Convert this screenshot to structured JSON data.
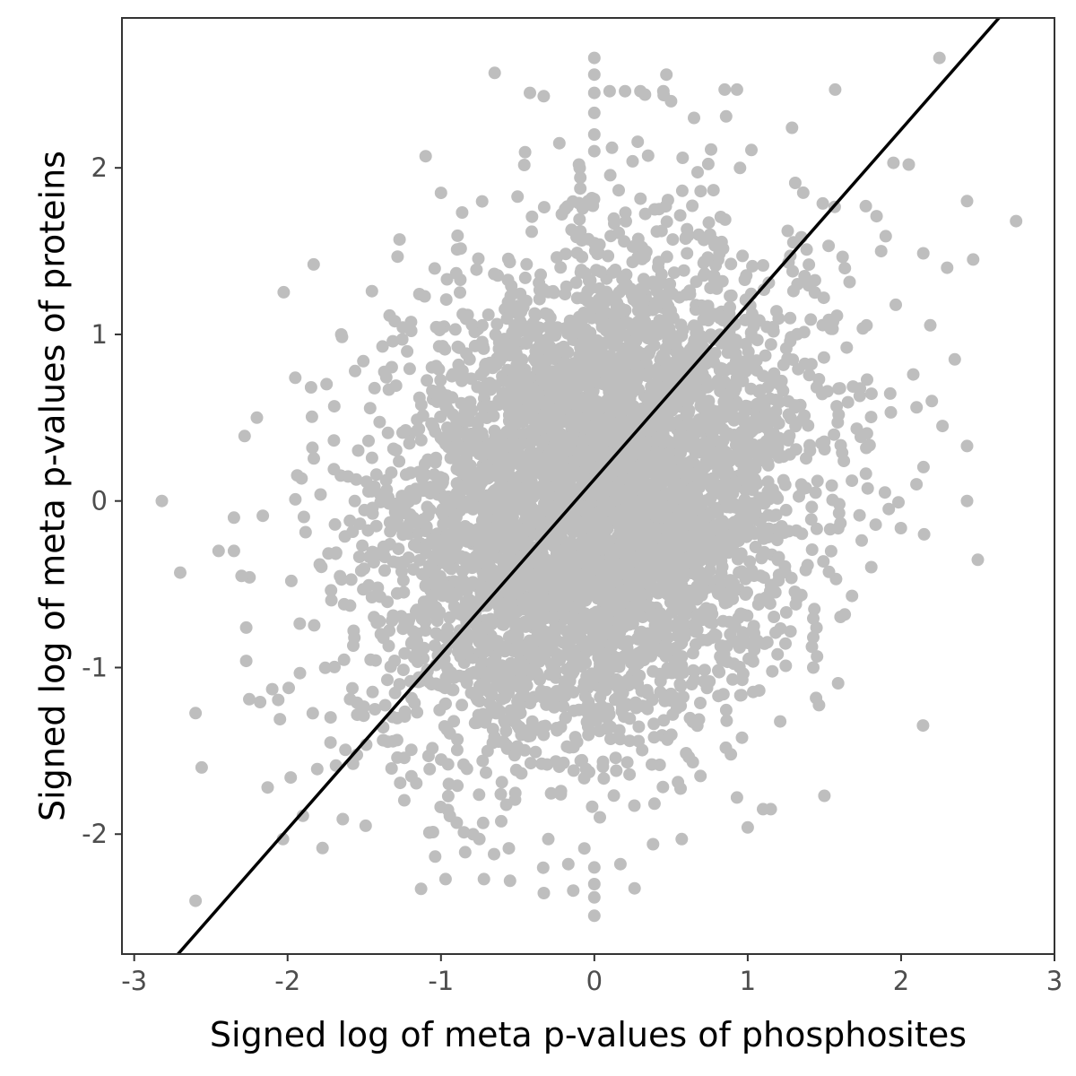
{
  "chart_data": {
    "type": "scatter",
    "title": "",
    "xlabel": "Signed log of meta p-values of phosphosites",
    "ylabel": "Signed log of meta p-values of proteins",
    "xlim": [
      -3.08,
      3.0
    ],
    "ylim": [
      -2.72,
      2.9
    ],
    "x_ticks": [
      -3,
      -2,
      -1,
      0,
      1,
      2,
      3
    ],
    "x_tick_labels": [
      "-3",
      "-2",
      "-1",
      "0",
      "1",
      "2",
      "3"
    ],
    "y_ticks": [
      -2,
      -1,
      0,
      1,
      2
    ],
    "y_tick_labels": [
      "-2",
      "-1",
      "0",
      "1",
      "2"
    ],
    "grid": false,
    "legend": "none",
    "point_color": "#bebebe",
    "line_color": "#000000",
    "reference_line": {
      "slope": 1.05,
      "intercept": 0.13
    },
    "cloud": {
      "n_points": 5200,
      "x_mean": 0.0,
      "y_mean": 0.0,
      "x_sd": 0.68,
      "y_sd": 0.72,
      "correlation": 0.22
    },
    "points": [
      [
        -2.82,
        0.0
      ],
      [
        -2.56,
        -1.6
      ],
      [
        -2.7,
        -0.43
      ],
      [
        -2.35,
        -0.3
      ],
      [
        -2.28,
        0.39
      ],
      [
        -2.27,
        -0.76
      ],
      [
        -2.27,
        -0.96
      ],
      [
        -2.25,
        -1.19
      ],
      [
        -2.2,
        0.5
      ],
      [
        -2.13,
        -1.72
      ],
      [
        -2.03,
        -2.03
      ],
      [
        -1.83,
        1.42
      ],
      [
        -1.65,
        1.0
      ],
      [
        -1.56,
        0.78
      ],
      [
        -1.45,
        1.26
      ],
      [
        -1.27,
        1.57
      ],
      [
        -1.1,
        2.07
      ],
      [
        -1.0,
        1.85
      ],
      [
        -0.97,
        -2.27
      ],
      [
        -0.75,
        -2.03
      ],
      [
        -0.72,
        -2.27
      ],
      [
        -0.65,
        2.57
      ],
      [
        -0.55,
        -2.28
      ],
      [
        -0.42,
        2.45
      ],
      [
        -0.33,
        2.43
      ],
      [
        -0.3,
        -2.03
      ],
      [
        -0.1,
        2.02
      ],
      [
        0.0,
        2.66
      ],
      [
        0.0,
        2.56
      ],
      [
        0.0,
        2.45
      ],
      [
        0.0,
        2.33
      ],
      [
        0.0,
        2.2
      ],
      [
        0.0,
        2.1
      ],
      [
        0.0,
        -2.3
      ],
      [
        0.0,
        -2.38
      ],
      [
        0.0,
        -2.49
      ],
      [
        0.0,
        -2.2
      ],
      [
        0.1,
        2.46
      ],
      [
        0.2,
        2.46
      ],
      [
        0.3,
        2.46
      ],
      [
        0.33,
        2.44
      ],
      [
        0.45,
        2.46
      ],
      [
        0.47,
        2.56
      ],
      [
        0.5,
        2.4
      ],
      [
        0.57,
        -2.03
      ],
      [
        0.65,
        2.3
      ],
      [
        0.85,
        2.47
      ],
      [
        0.93,
        2.47
      ],
      [
        1.0,
        -1.96
      ],
      [
        1.1,
        -1.85
      ],
      [
        1.15,
        -1.85
      ],
      [
        1.5,
        -1.77
      ],
      [
        1.57,
        2.47
      ],
      [
        2.25,
        2.66
      ],
      [
        2.75,
        1.68
      ],
      [
        2.43,
        1.8
      ],
      [
        2.47,
        1.45
      ],
      [
        2.43,
        0.33
      ],
      [
        2.43,
        0.0
      ],
      [
        2.3,
        1.4
      ],
      [
        1.68,
        -0.57
      ],
      [
        2.05,
        2.02
      ],
      [
        1.95,
        2.03
      ],
      [
        1.87,
        1.5
      ],
      [
        0.93,
        -1.78
      ],
      [
        -1.9,
        -1.89
      ],
      [
        -2.3,
        -0.45
      ],
      [
        -2.45,
        -0.3
      ],
      [
        -1.95,
        0.74
      ],
      [
        -2.35,
        -0.1
      ],
      [
        -2.05,
        -1.31
      ],
      [
        -2.1,
        -1.13
      ],
      [
        -1.98,
        -1.66
      ],
      [
        -1.64,
        -1.91
      ],
      [
        -1.72,
        -1.45
      ],
      [
        2.35,
        0.85
      ],
      [
        2.2,
        0.6
      ],
      [
        2.1,
        0.1
      ],
      [
        2.15,
        -0.2
      ],
      [
        2.27,
        0.45
      ],
      [
        1.77,
        1.77
      ],
      [
        1.84,
        1.71
      ],
      [
        1.9,
        1.59
      ],
      [
        0.17,
        -2.18
      ],
      [
        -0.17,
        -2.18
      ]
    ]
  }
}
